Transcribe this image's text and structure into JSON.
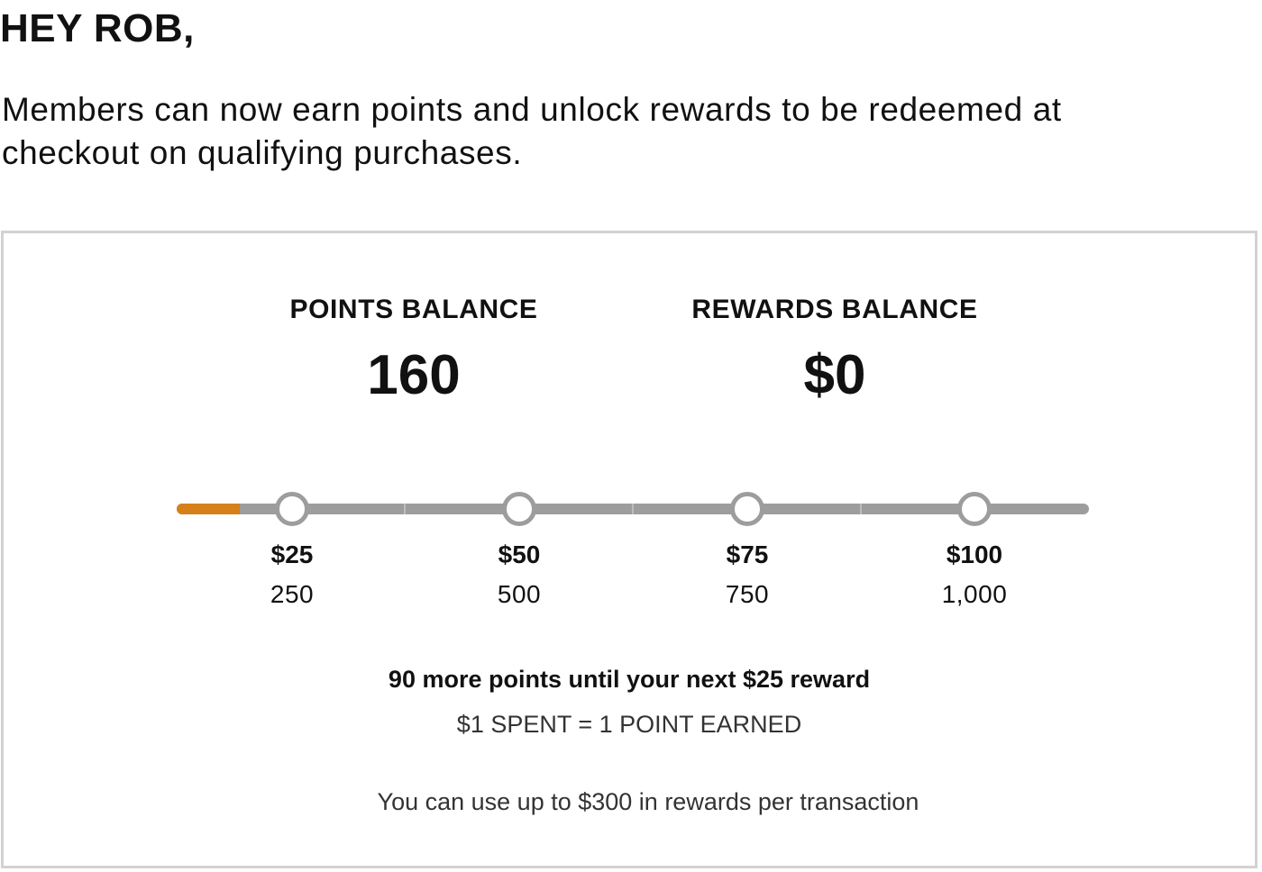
{
  "greeting": "HEY ROB,",
  "intro": "Members can now earn points and unlock rewards to be redeemed at checkout on qualifying purchases.",
  "points_balance": {
    "label": "POINTS BALANCE",
    "value": "160"
  },
  "rewards_balance": {
    "label": "REWARDS BALANCE",
    "value": "$0"
  },
  "progress": {
    "fill_points": 160,
    "max_points": 1000,
    "fill_color": "#d6801a",
    "track_color": "#9d9d9d"
  },
  "milestones": [
    {
      "reward": "$25",
      "points": "250"
    },
    {
      "reward": "$50",
      "points": "500"
    },
    {
      "reward": "$75",
      "points": "750"
    },
    {
      "reward": "$100",
      "points": "1,000"
    }
  ],
  "next_reward": "90 more points until your next $25 reward",
  "earn_rate": "$1 SPENT = 1 POINT EARNED",
  "limit_note": "You can use up to $300 in rewards per transaction"
}
